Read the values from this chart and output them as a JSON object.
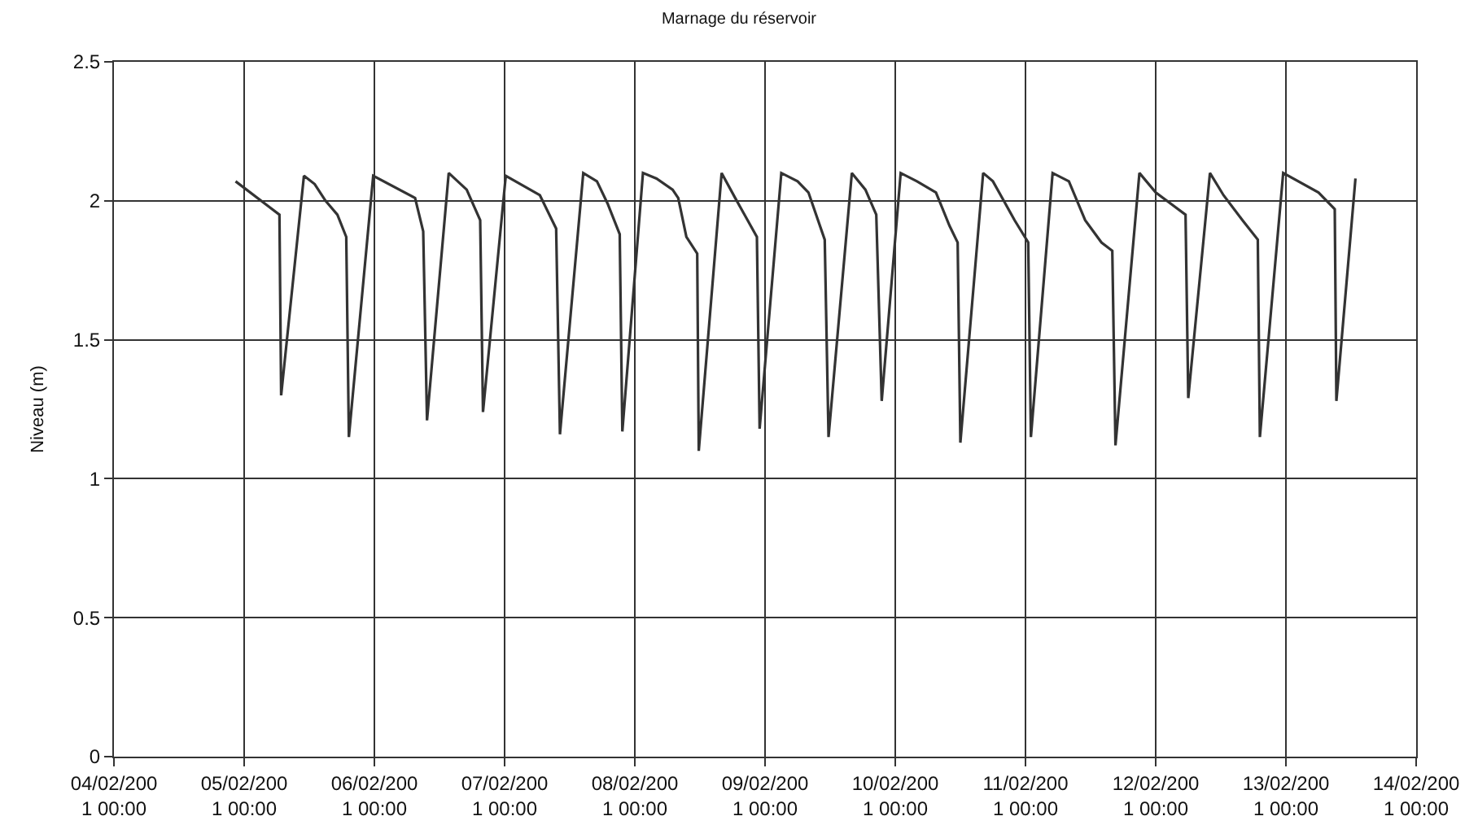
{
  "chart_data": {
    "type": "line",
    "title": "Marnage du réservoir",
    "ylabel": "Niveau (m)",
    "xlim": [
      "--02-04T00:00",
      "--02-14T00:00"
    ],
    "xticks": [
      {
        "value": "--02-04T00:00",
        "label": "04/02/200\n1 00:00"
      },
      {
        "value": "--02-05T00:00",
        "label": "05/02/200\n1 00:00"
      },
      {
        "value": "--02-06T00:00",
        "label": "06/02/200\n1 00:00"
      },
      {
        "value": "--02-07T00:00",
        "label": "07/02/200\n1 00:00"
      },
      {
        "value": "--02-08T00:00",
        "label": "08/02/200\n1 00:00"
      },
      {
        "value": "--02-09T00:00",
        "label": "09/02/200\n1 00:00"
      },
      {
        "value": "--02-10T00:00",
        "label": "10/02/200\n1 00:00"
      },
      {
        "value": "--02-11T00:00",
        "label": "11/02/200\n1 00:00"
      },
      {
        "value": "--02-12T00:00",
        "label": "12/02/200\n1 00:00"
      },
      {
        "value": "--02-13T00:00",
        "label": "13/02/200\n1 00:00"
      },
      {
        "value": "--02-14T00:00",
        "label": "14/02/200\n1 00:00"
      }
    ],
    "ylim": [
      0,
      2.5
    ],
    "yticks": [
      0,
      0.5,
      1,
      1.5,
      2,
      2.5
    ],
    "grid": true,
    "marker": "none",
    "line_style": "solid",
    "x": [
      "--02-04T22:25",
      "--02-05T06:30",
      "--02-05T06:49",
      "--02-05T11:01",
      "--02-05T13:00",
      "--02-05T15:00",
      "--02-05T17:11",
      "--02-05T18:49",
      "--02-05T19:18",
      "--02-05T23:47",
      "--02-06T07:30",
      "--02-06T09:00",
      "--02-06T09:42",
      "--02-06T13:42",
      "--02-06T17:01",
      "--02-06T19:30",
      "--02-06T20:01",
      "--02-07T00:13",
      "--02-07T06:30",
      "--02-07T09:30",
      "--02-07T10:12",
      "--02-07T14:30",
      "--02-07T17:01",
      "--02-07T18:59",
      "--02-07T21:13",
      "--02-07T21:42",
      "--02-08T01:30",
      "--02-08T04:00",
      "--02-08T06:58",
      "--02-08T08:00",
      "--02-08T09:30",
      "--02-08T11:30",
      "--02-08T11:47",
      "--02-08T16:00",
      "--02-08T18:30",
      "--02-08T20:30",
      "--02-08T22:30",
      "--02-08T23:00",
      "--02-09T03:00",
      "--02-09T06:00",
      "--02-09T08:00",
      "--02-09T11:00",
      "--02-09T11:42",
      "--02-09T16:00",
      "--02-09T18:30",
      "--02-09T20:30",
      "--02-09T21:30",
      "--02-10T01:00",
      "--02-10T04:00",
      "--02-10T07:30",
      "--02-10T10:00",
      "--02-10T11:30",
      "--02-10T12:00",
      "--02-10T16:12",
      "--02-10T18:00",
      "--02-10T20:00",
      "--02-10T22:00",
      "--02-11T00:30",
      "--02-11T01:00",
      "--02-11T05:00",
      "--02-11T08:00",
      "--02-11T11:00",
      "--02-11T14:00",
      "--02-11T16:00",
      "--02-11T16:35",
      "--02-11T21:00",
      "--02-12T00:00",
      "--02-12T05:30",
      "--02-12T06:00",
      "--02-12T10:00",
      "--02-12T12:30",
      "--02-12T16:00",
      "--02-12T18:49",
      "--02-12T19:12",
      "--02-12T23:30",
      "--02-13T06:00",
      "--02-13T09:00",
      "--02-13T09:18",
      "--02-13T12:49"
    ],
    "series": [
      {
        "color": "#333333",
        "values": [
          2.07,
          1.95,
          1.3,
          2.09,
          2.06,
          2.0,
          1.95,
          1.87,
          1.15,
          2.09,
          2.01,
          1.89,
          1.21,
          2.1,
          2.04,
          1.93,
          1.24,
          2.09,
          2.02,
          1.9,
          1.16,
          2.1,
          2.07,
          1.99,
          1.88,
          1.17,
          2.1,
          2.08,
          2.04,
          2.01,
          1.87,
          1.81,
          1.1,
          2.1,
          2.01,
          1.94,
          1.87,
          1.18,
          2.1,
          2.07,
          2.03,
          1.86,
          1.15,
          2.1,
          2.04,
          1.95,
          1.28,
          2.1,
          2.07,
          2.03,
          1.91,
          1.85,
          1.13,
          2.1,
          2.07,
          2.0,
          1.93,
          1.85,
          1.15,
          2.1,
          2.07,
          1.93,
          1.85,
          1.82,
          1.12,
          2.1,
          2.03,
          1.95,
          1.29,
          2.1,
          2.02,
          1.93,
          1.86,
          1.15,
          2.1,
          2.03,
          1.97,
          1.28,
          2.08
        ]
      }
    ]
  }
}
